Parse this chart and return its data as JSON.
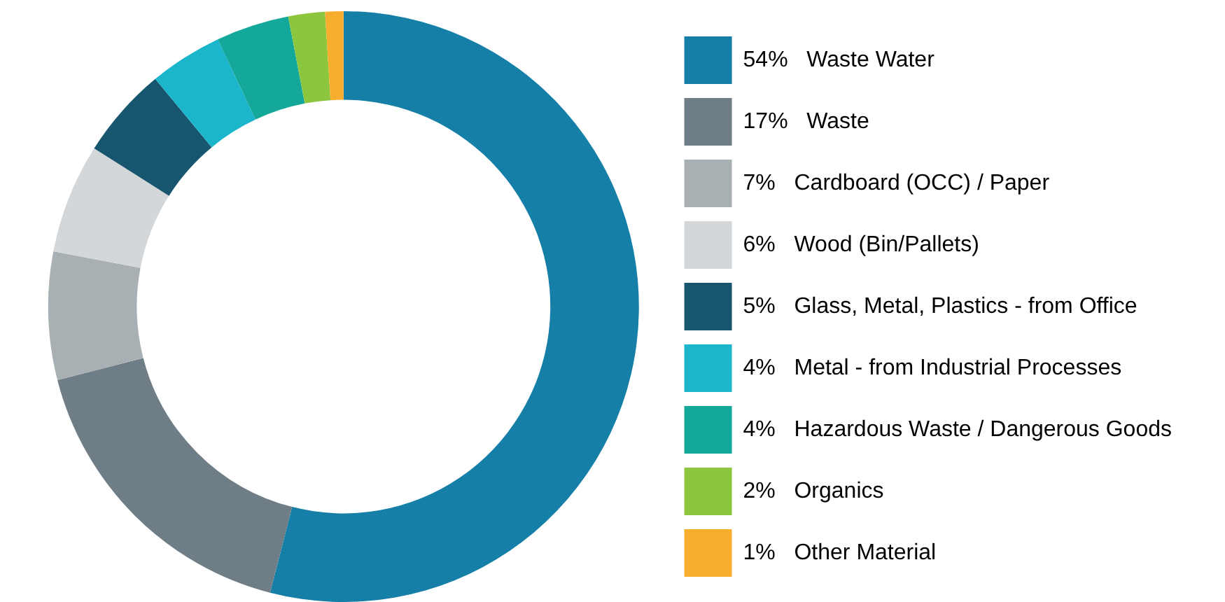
{
  "chart_data": {
    "type": "donut",
    "categories": [
      "Waste Water",
      "Waste",
      "Cardboard (OCC) / Paper",
      "Wood (Bin/Pallets)",
      "Glass, Metal, Plastics - from Office",
      "Metal - from Industrial Processes",
      "Hazardous Waste / Dangerous Goods",
      "Organics",
      "Other Material"
    ],
    "values": [
      54,
      17,
      7,
      6,
      5,
      4,
      4,
      2,
      1
    ],
    "value_labels": [
      "54%",
      "17%",
      "7%",
      "6%",
      "5%",
      "4%",
      "4%",
      "2%",
      "1%"
    ],
    "colors": [
      "#157fa8",
      "#6f7d86",
      "#a9b0b4",
      "#d3d7d9",
      "#17566e",
      "#1bb5cc",
      "#14a89a",
      "#8cc63f",
      "#f7ae2f"
    ],
    "legend": "right"
  }
}
